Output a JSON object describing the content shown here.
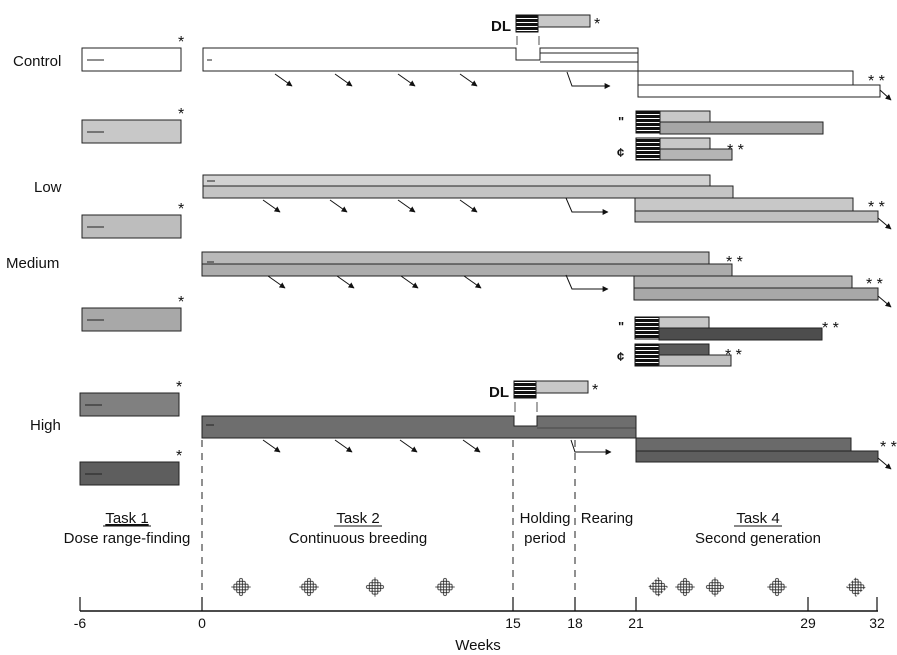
{
  "groups": {
    "control": "Control",
    "low": "Low",
    "medium": "Medium",
    "high": "High"
  },
  "markers": {
    "dl": "DL",
    "asterisk": "*",
    "double_asterisk": "* *",
    "male": "\"",
    "female": "¢"
  },
  "tasks": {
    "task1_title": "Task 1",
    "task1_sub": "Dose range-finding",
    "task2_title": "Task 2",
    "task2_sub": "Continuous breeding",
    "holding_line1": "Holding",
    "holding_line2": "period",
    "rearing": "Rearing",
    "task4_title": "Task 4",
    "task4_sub": "Second generation"
  },
  "axis": {
    "label": "Weeks",
    "ticks": [
      "-6",
      "0",
      "15",
      "18",
      "21",
      "29",
      "32"
    ]
  },
  "colors": {
    "control_fill": "#ffffff",
    "low_fill": "#c8c8c8",
    "medium_fill": "#b4b4b4",
    "high_fill": "#777777",
    "dark_fill": "#555555",
    "stroke": "#222222"
  }
}
